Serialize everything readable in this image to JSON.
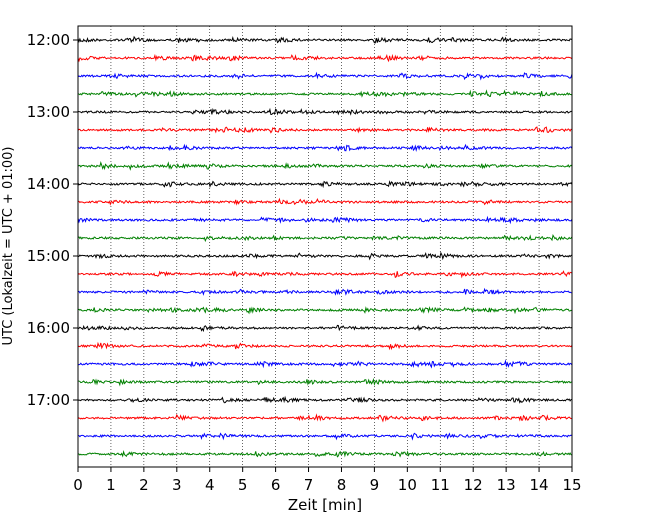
{
  "chart_data": {
    "type": "line",
    "title": "",
    "xlabel": "Zeit  [min]",
    "ylabel": "UTC (Lokalzeit = UTC + 01:00)",
    "xlim": [
      0,
      15
    ],
    "x_ticks": [
      0,
      1,
      2,
      3,
      4,
      5,
      6,
      7,
      8,
      9,
      10,
      11,
      12,
      13,
      14,
      15
    ],
    "x_tick_labels": [
      "0",
      "1",
      "2",
      "3",
      "4",
      "5",
      "6",
      "7",
      "8",
      "9",
      "10",
      "11",
      "12",
      "13",
      "14",
      "15"
    ],
    "y_tick_labels": [
      "12:00",
      "13:00",
      "14:00",
      "15:00",
      "16:00",
      "17:00"
    ],
    "trace_interval_minutes": 15,
    "start_time": "12:00",
    "trace_count": 24,
    "trace_colors": [
      "#000000",
      "#ff0000",
      "#0000ff",
      "#008000"
    ],
    "grid": {
      "vertical_dotted": true,
      "horizontal": false
    },
    "legend": "none"
  }
}
